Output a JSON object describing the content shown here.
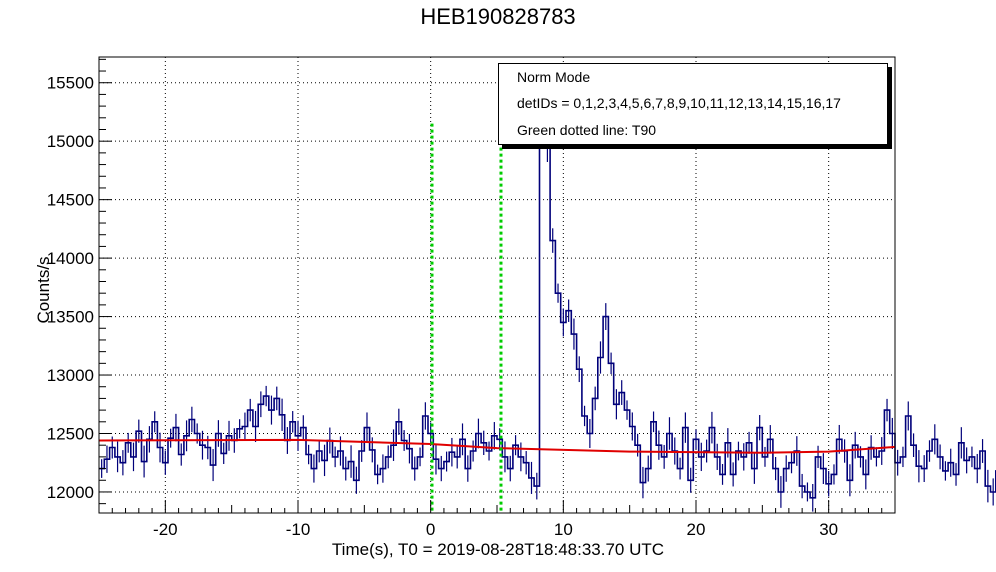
{
  "chart_data": {
    "type": "line",
    "title": "HEB190828783",
    "xlabel": "Time(s), T0 = 2019-08-28T18:48:33.70 UTC",
    "ylabel": "Counts/s",
    "xlim": [
      -25,
      35
    ],
    "ylim": [
      11820,
      15720
    ],
    "x_ticks": [
      -20,
      -10,
      0,
      10,
      20,
      30
    ],
    "y_ticks": [
      12000,
      12500,
      13000,
      13500,
      14000,
      14500,
      15000,
      15500
    ],
    "grid": true,
    "legend": {
      "placement": "top-right",
      "lines": [
        "Norm Mode",
        "detIDs = 0,1,2,3,4,5,6,7,8,9,10,11,12,13,14,15,16,17",
        "Green dotted line: T90"
      ]
    },
    "bin_width": 0.4,
    "series": [
      {
        "type": "step",
        "color": "#00007a",
        "x_start": -25,
        "values": [
          12200,
          12280,
          12380,
          12300,
          12250,
          12420,
          12300,
          12520,
          12260,
          12450,
          12600,
          12380,
          12250,
          12460,
          12550,
          12320,
          12480,
          12620,
          12500,
          12400,
          12380,
          12230,
          12500,
          12330,
          12480,
          12440,
          12540,
          12560,
          12700,
          12560,
          12750,
          12820,
          12700,
          12800,
          12660,
          12440,
          12600,
          12480,
          12550,
          12320,
          12200,
          12350,
          12270,
          12440,
          12300,
          12350,
          12200,
          12260,
          12100,
          12350,
          12550,
          12360,
          12150,
          12200,
          12300,
          12400,
          12600,
          12440,
          12370,
          12200,
          12300,
          12650,
          12500,
          12280,
          12200,
          12260,
          12340,
          12300,
          12450,
          12200,
          12350,
          12500,
          12420,
          12350,
          12480,
          12450,
          12300,
          12200,
          12400,
          12300,
          12250,
          12120,
          12050,
          15270,
          14950,
          14150,
          13700,
          13450,
          13550,
          13350,
          13050,
          12650,
          12500,
          12800,
          13150,
          13500,
          13100,
          12750,
          12850,
          12700,
          12560,
          12400,
          12080,
          12200,
          12600,
          12400,
          12300,
          12500,
          12350,
          12200,
          12550,
          12100,
          12450,
          12300,
          12350,
          12550,
          12300,
          12150,
          12420,
          12150,
          12350,
          12300,
          12420,
          12200,
          12550,
          12300,
          12450,
          12200,
          12000,
          12200,
          12250,
          12350,
          12050,
          12000,
          11950,
          12300,
          12200,
          12070,
          12150,
          12450,
          12350,
          12100,
          12400,
          12300,
          12150,
          12380,
          12300,
          12350,
          12700,
          12500,
          12250,
          12300,
          12650,
          12400,
          12220,
          12200,
          12350,
          12450,
          12300,
          12180,
          12250,
          12150,
          12420,
          12270,
          12300,
          12200,
          12350,
          12050,
          12000,
          12180,
          12300,
          12420,
          12200,
          12560,
          12850,
          12620,
          12300,
          12500,
          12330,
          12250,
          12180,
          12420,
          12300,
          12200,
          12350,
          12050,
          12300,
          12200,
          12330,
          12500,
          12450,
          12350,
          12250,
          12120,
          12330,
          12500,
          12100,
          12370,
          12700,
          12500,
          12300,
          12450
        ]
      },
      {
        "type": "line",
        "name": "",
        "color": "#e00000",
        "points": [
          [
            -25,
            12440
          ],
          [
            -10,
            12445
          ],
          [
            0,
            12410
          ],
          [
            5,
            12375
          ],
          [
            15,
            12345
          ],
          [
            25,
            12335
          ],
          [
            30,
            12345
          ],
          [
            35,
            12385
          ]
        ]
      }
    ],
    "t90_lines": {
      "color": "#00cc00",
      "x": [
        0.1,
        5.3
      ]
    }
  }
}
